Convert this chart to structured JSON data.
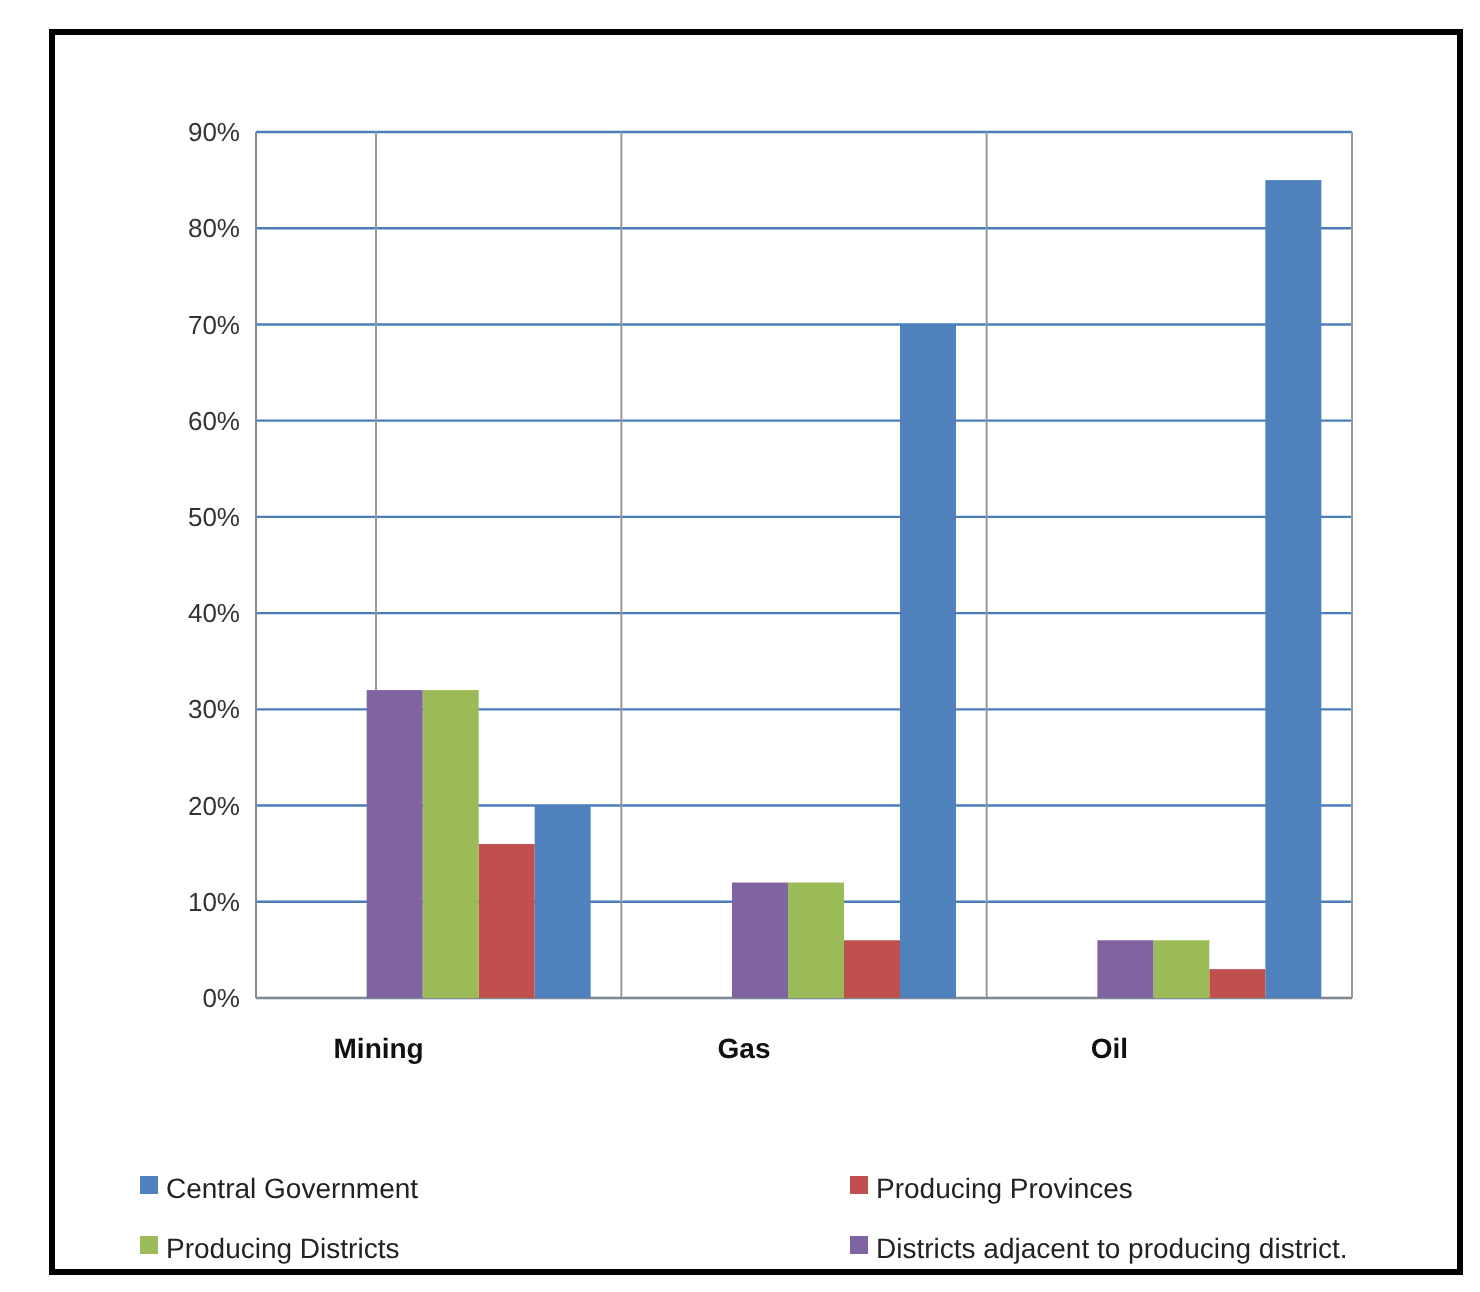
{
  "chart_data": {
    "type": "bar",
    "categories": [
      "Mining",
      "Gas",
      "Oil"
    ],
    "series": [
      {
        "name": "Central Government",
        "color": "#4f81bd",
        "values": [
          20,
          70,
          85
        ]
      },
      {
        "name": "Producing Provinces",
        "color": "#c0504d",
        "values": [
          16,
          6,
          3
        ]
      },
      {
        "name": "Producing Districts",
        "color": "#9bbb59",
        "values": [
          32,
          12,
          6
        ]
      },
      {
        "name": "Districts adjacent to producing district.",
        "color": "#8064a2",
        "values": [
          32,
          12,
          6
        ]
      }
    ],
    "ylim": [
      0,
      90
    ],
    "yticks": [
      {
        "value": 0,
        "label": "0%"
      },
      {
        "value": 10,
        "label": "10%"
      },
      {
        "value": 20,
        "label": "20%"
      },
      {
        "value": 30,
        "label": "30%"
      },
      {
        "value": 40,
        "label": "40%"
      },
      {
        "value": 50,
        "label": "50%"
      },
      {
        "value": 60,
        "label": "60%"
      },
      {
        "value": 70,
        "label": "70%"
      },
      {
        "value": 80,
        "label": "80%"
      },
      {
        "value": 90,
        "label": "90%"
      }
    ],
    "grid": true,
    "legend": "bottom"
  }
}
